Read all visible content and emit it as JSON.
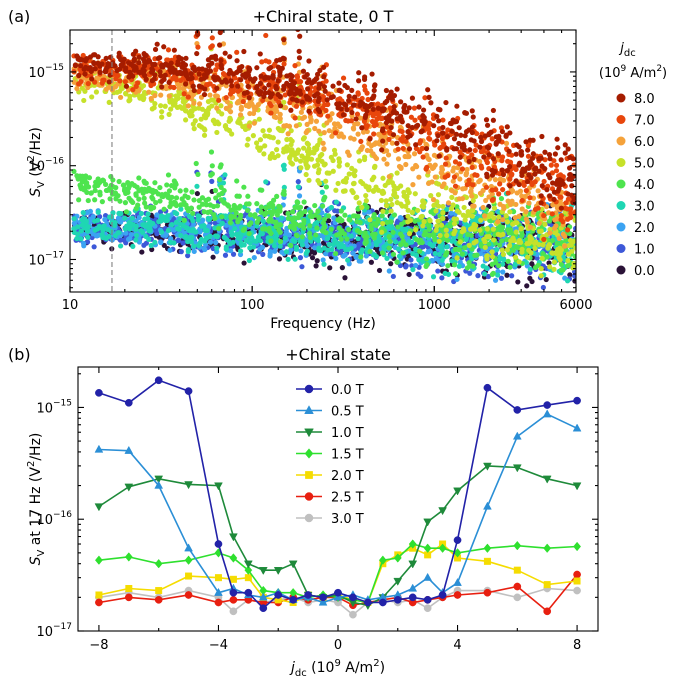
{
  "chart_data": [
    {
      "type": "scatter",
      "panel_label": "(a)",
      "title": "+Chiral state, 0 T",
      "xlabel": "Frequency (Hz)",
      "ylabel_main": "S",
      "ylabel_sub": "V",
      "ylabel_rest": " (V",
      "ylabel_sup": "2",
      "ylabel_end": "/Hz)",
      "xscale": "log",
      "yscale": "log",
      "xlim": [
        10,
        6000
      ],
      "ylim": [
        4.5e-18,
        2.8e-15
      ],
      "x_ticks": [
        10,
        100,
        1000,
        6000
      ],
      "x_tick_labels": [
        "10",
        "100",
        "1000",
        "6000"
      ],
      "y_ticks": [
        1e-17,
        1e-16,
        1e-15
      ],
      "y_tick_labels": [
        "10",
        "10",
        "10"
      ],
      "y_tick_exps": [
        "−17",
        "−16",
        "−15"
      ],
      "marker_line_x": 17,
      "legend_title": "j",
      "legend_title_sub": "dc",
      "legend_unit": "(10",
      "legend_unit_sup": "9",
      "legend_unit_end": " A/m",
      "legend_unit_sup2": "2",
      "legend_unit_close": ")",
      "series": [
        {
          "name": "8.0",
          "color": "#a51c00",
          "plateau": 1.25e-15,
          "corner": 260,
          "slope": 1.0,
          "floor": 1.3e-17
        },
        {
          "name": "7.0",
          "color": "#e8460c",
          "plateau": 1.15e-15,
          "corner": 190,
          "slope": 1.0,
          "floor": 1.2e-17
        },
        {
          "name": "6.0",
          "color": "#f5a23a",
          "plateau": 1e-15,
          "corner": 110,
          "slope": 1.0,
          "floor": 1.1e-17
        },
        {
          "name": "5.0",
          "color": "#c6e12a",
          "plateau": 1.05e-15,
          "corner": 32,
          "slope": 1.1,
          "floor": 1e-17
        },
        {
          "name": "4.0",
          "color": "#4ee44e",
          "plateau": 9.5e-17,
          "corner": 12,
          "slope": 0.7,
          "floor": 1.5e-17
        },
        {
          "name": "3.0",
          "color": "#1fd6b3",
          "plateau": 2e-17,
          "corner": 100,
          "slope": 0.3,
          "floor": 1e-17
        },
        {
          "name": "2.0",
          "color": "#3ba3f2",
          "plateau": 1.9e-17,
          "corner": 100,
          "slope": 0.3,
          "floor": 1e-17
        },
        {
          "name": "1.0",
          "color": "#3d58d8",
          "plateau": 1.8e-17,
          "corner": 100,
          "slope": 0.3,
          "floor": 1e-17
        },
        {
          "name": "0.0",
          "color": "#2a1237",
          "plateau": 1.7e-17,
          "corner": 100,
          "slope": 0.3,
          "floor": 1e-17
        }
      ]
    },
    {
      "type": "line",
      "panel_label": "(b)",
      "title": "+Chiral state",
      "xlabel_main": "j",
      "xlabel_sub": "dc",
      "xlabel_rest": " (10",
      "xlabel_sup": "9",
      "xlabel_end": " A/m",
      "xlabel_sup2": "2",
      "xlabel_close": ")",
      "ylabel_main": "S",
      "ylabel_sub": "V",
      "ylabel_rest": " at 17 Hz (V",
      "ylabel_sup": "2",
      "ylabel_end": "/Hz)",
      "xlim": [
        -8.7,
        8.7
      ],
      "yscale": "log",
      "ylim": [
        1e-17,
        2.3e-15
      ],
      "x_ticks": [
        -8,
        -4,
        0,
        4,
        8
      ],
      "x_tick_labels": [
        "−8",
        "−4",
        "0",
        "4",
        "8"
      ],
      "y_ticks": [
        1e-17,
        1e-16,
        1e-15
      ],
      "y_tick_labels": [
        "10",
        "10",
        "10"
      ],
      "y_tick_exps": [
        "−17",
        "−16",
        "−15"
      ],
      "x": [
        -8,
        -7,
        -6,
        -5,
        -4,
        -3.5,
        -3,
        -2.5,
        -2,
        -1.5,
        -1,
        -0.5,
        0,
        0.5,
        1,
        1.5,
        2,
        2.5,
        3,
        3.5,
        4,
        5,
        6,
        7,
        8
      ],
      "series": [
        {
          "name": "0.0 T",
          "color": "#2222a8",
          "marker": "circle",
          "values": [
            1.35e-15,
            1.1e-15,
            1.75e-15,
            1.4e-15,
            6e-17,
            2.2e-17,
            2.2e-17,
            1.6e-17,
            2.1e-17,
            1.9e-17,
            2.1e-17,
            2e-17,
            2.2e-17,
            2e-17,
            1.8e-17,
            1.8e-17,
            1.9e-17,
            2e-17,
            1.9e-17,
            2.1e-17,
            6.5e-17,
            1.5e-15,
            9.5e-16,
            1.05e-15,
            1.15e-15
          ]
        },
        {
          "name": "0.5 T",
          "color": "#2b8fd6",
          "marker": "triangle-up",
          "values": [
            4.2e-16,
            4.1e-16,
            2e-16,
            5.5e-17,
            2.2e-17,
            2.4e-17,
            2.1e-17,
            2e-17,
            2.2e-17,
            1.9e-17,
            2e-17,
            1.8e-17,
            2e-17,
            2.1e-17,
            1.9e-17,
            2e-17,
            2.1e-17,
            2.4e-17,
            3e-17,
            2.2e-17,
            2.7e-17,
            1.3e-16,
            5.5e-16,
            8.7e-16,
            6.5e-16
          ]
        },
        {
          "name": "1.0 T",
          "color": "#1e8a3a",
          "marker": "triangle-down",
          "values": [
            1.3e-16,
            1.95e-16,
            2.3e-16,
            2.05e-16,
            2e-16,
            7e-17,
            4e-17,
            3.5e-17,
            3.5e-17,
            4e-17,
            2.1e-17,
            2e-17,
            2.1e-17,
            1.8e-17,
            1.7e-17,
            2e-17,
            2.8e-17,
            4e-17,
            9.5e-17,
            1.2e-16,
            1.8e-16,
            3e-16,
            2.9e-16,
            2.3e-16,
            2e-16
          ]
        },
        {
          "name": "1.5 T",
          "color": "#2ee02e",
          "marker": "diamond",
          "values": [
            4.3e-17,
            4.6e-17,
            4e-17,
            4.3e-17,
            5e-17,
            4.5e-17,
            3.5e-17,
            2.3e-17,
            2.2e-17,
            2.2e-17,
            2e-17,
            2.1e-17,
            2e-17,
            1.9e-17,
            1.8e-17,
            4.3e-17,
            4.5e-17,
            6e-17,
            5.5e-17,
            5.5e-17,
            5e-17,
            5.5e-17,
            5.8e-17,
            5.5e-17,
            5.7e-17
          ]
        },
        {
          "name": "2.0 T",
          "color": "#f5dc00",
          "marker": "square",
          "values": [
            2.1e-17,
            2.4e-17,
            2.3e-17,
            3.1e-17,
            3e-17,
            2.9e-17,
            3e-17,
            2e-17,
            1.9e-17,
            1.8e-17,
            2.1e-17,
            2e-17,
            2.1e-17,
            1.9e-17,
            1.8e-17,
            4e-17,
            4.8e-17,
            5.5e-17,
            4.8e-17,
            6e-17,
            4.5e-17,
            4.2e-17,
            3.5e-17,
            2.6e-17,
            2.8e-17
          ]
        },
        {
          "name": "2.5 T",
          "color": "#e81f10",
          "marker": "circle",
          "values": [
            1.8e-17,
            2e-17,
            1.9e-17,
            2.1e-17,
            1.8e-17,
            1.9e-17,
            1.9e-17,
            1.8e-17,
            1.8e-17,
            2e-17,
            1.9e-17,
            2e-17,
            2e-17,
            1.7e-17,
            1.8e-17,
            1.9e-17,
            2e-17,
            1.8e-17,
            1.9e-17,
            2e-17,
            2.1e-17,
            2.2e-17,
            2.5e-17,
            1.5e-17,
            3.2e-17
          ]
        },
        {
          "name": "3.0 T",
          "color": "#c0c0c0",
          "marker": "circle",
          "values": [
            2e-17,
            2.2e-17,
            2e-17,
            2.3e-17,
            2e-17,
            1.5e-17,
            1.9e-17,
            1.8e-17,
            1.9e-17,
            2e-17,
            1.8e-17,
            1.9e-17,
            1.8e-17,
            1.4e-17,
            1.8e-17,
            1.9e-17,
            1.8e-17,
            1.9e-17,
            1.6e-17,
            2e-17,
            2.3e-17,
            2.3e-17,
            2e-17,
            2.4e-17,
            2.3e-17
          ]
        }
      ]
    }
  ]
}
